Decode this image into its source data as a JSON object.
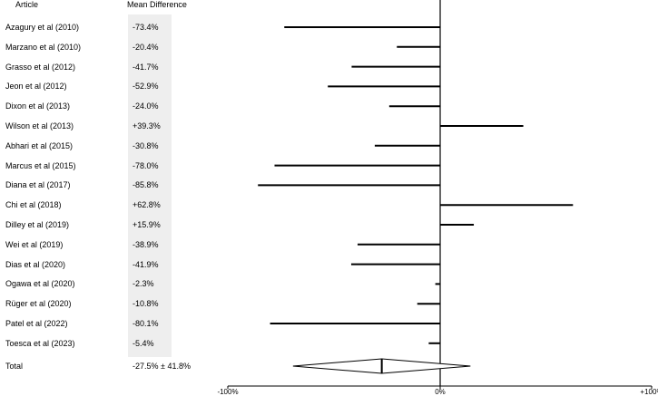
{
  "headers": {
    "article": "Article",
    "mean_difference": "Mean Difference"
  },
  "chart_data": {
    "type": "forest",
    "title": "",
    "xlabel": "",
    "ylabel": "",
    "xlim": [
      -100,
      100
    ],
    "xticks": [
      {
        "value": -100,
        "label": "-100%"
      },
      {
        "value": 0,
        "label": "0%"
      },
      {
        "value": 100,
        "label": "+100%"
      }
    ],
    "studies": [
      {
        "article": "Azagury et al (2010)",
        "label": "-73.4%",
        "value": -73.4
      },
      {
        "article": "Marzano et al (2010)",
        "label": "-20.4%",
        "value": -20.4
      },
      {
        "article": "Grasso et al (2012)",
        "label": "-41.7%",
        "value": -41.7
      },
      {
        "article": "Jeon et al (2012)",
        "label": "-52.9%",
        "value": -52.9
      },
      {
        "article": "Dixon et al (2013)",
        "label": "-24.0%",
        "value": -24.0
      },
      {
        "article": "Wilson et al (2013)",
        "label": "+39.3%",
        "value": 39.3
      },
      {
        "article": "Abhari et al (2015)",
        "label": "-30.8%",
        "value": -30.8
      },
      {
        "article": "Marcus et al (2015)",
        "label": "-78.0%",
        "value": -78.0
      },
      {
        "article": "Diana et al (2017)",
        "label": "-85.8%",
        "value": -85.8
      },
      {
        "article": "Chi et al (2018)",
        "label": "+62.8%",
        "value": 62.8
      },
      {
        "article": "Dilley et al (2019)",
        "label": "+15.9%",
        "value": 15.9
      },
      {
        "article": "Wei et al (2019)",
        "label": "-38.9%",
        "value": -38.9
      },
      {
        "article": "Dias et al (2020)",
        "label": "-41.9%",
        "value": -41.9
      },
      {
        "article": "Ogawa et al (2020)",
        "label": "-2.3%",
        "value": -2.3
      },
      {
        "article": "Rüger et al (2020)",
        "label": "-10.8%",
        "value": -10.8
      },
      {
        "article": "Patel et al (2022)",
        "label": "-80.1%",
        "value": -80.1
      },
      {
        "article": "Toesca et al (2023)",
        "label": "-5.4%",
        "value": -5.4
      }
    ],
    "total": {
      "article": "Total",
      "label": "-27.5% ± 41.8%",
      "mean": -27.5,
      "sd": 41.8
    }
  }
}
